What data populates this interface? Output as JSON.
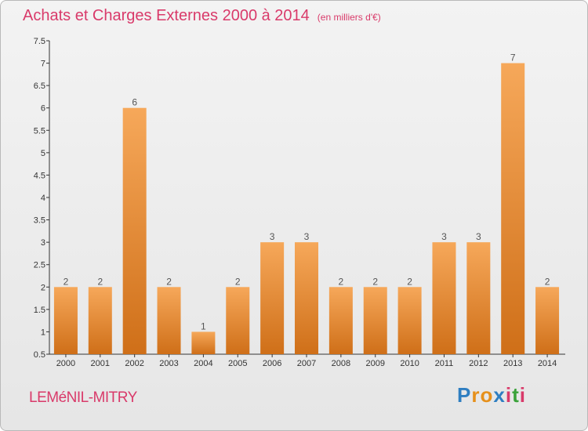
{
  "header": {
    "title": "Achats et Charges Externes 2000 à 2014",
    "unit": "(en milliers d'€)"
  },
  "footer": {
    "commune": "LEMéNIL-MITRY",
    "logo": [
      "P",
      "r",
      "o",
      "x",
      "i",
      "t",
      "i"
    ],
    "logo_colors": [
      "#2e7ec1",
      "#e6901b",
      "#e6901b",
      "#2e7ec1",
      "#d93a6a",
      "#3aa23a",
      "#d93a6a"
    ]
  },
  "chart_data": {
    "type": "bar",
    "title": "Achats et Charges Externes 2000 à 2014",
    "unit": "(en milliers d'€)",
    "categories": [
      "2000",
      "2001",
      "2002",
      "2003",
      "2004",
      "2005",
      "2006",
      "2007",
      "2008",
      "2009",
      "2010",
      "2011",
      "2012",
      "2013",
      "2014"
    ],
    "values": [
      2,
      2,
      6,
      2,
      1,
      2,
      3,
      3,
      2,
      2,
      2,
      3,
      3,
      7,
      2
    ],
    "data_labels": [
      "2",
      "2",
      "6",
      "2",
      "1",
      "2",
      "3",
      "3",
      "2",
      "2",
      "2",
      "3",
      "3",
      "7",
      "2"
    ],
    "ylim": [
      0.5,
      7.5
    ],
    "yticks": [
      0.5,
      1,
      1.5,
      2,
      2.5,
      3,
      3.5,
      4,
      4.5,
      5,
      5.5,
      6,
      6.5,
      7,
      7.5
    ],
    "ytick_labels": [
      "0.5",
      "1",
      "1.5",
      "2",
      "2.5",
      "3",
      "3.5",
      "4",
      "4.5",
      "5",
      "5.5",
      "6",
      "6.5",
      "7",
      "7.5"
    ],
    "grid": false,
    "colors": {
      "bar_top": "#f6a85a",
      "bar_bottom": "#cf6f18",
      "axis": "#333333"
    }
  }
}
